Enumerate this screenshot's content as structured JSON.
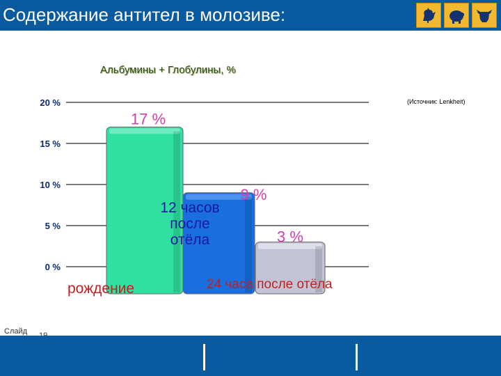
{
  "header": {
    "title": "Содержание антител в молозиве:",
    "icons": [
      "rooster-icon",
      "pig-icon",
      "cow-icon"
    ]
  },
  "subtitle": "Альбумины + Глобулины, %",
  "source": "(Источник: Lenkheit)",
  "footer": {
    "slide_label": "Слайд",
    "slide_number": "19"
  },
  "colors": {
    "header": "#0a5aa0",
    "bar1": "#2fe0a0",
    "bar2": "#1a6fe0",
    "bar3": "#c2c4d6",
    "value_label": "#d040b0",
    "category_label": "#c02020"
  },
  "chart_data": {
    "type": "bar",
    "categories": [
      "рождение",
      "12 часов после отёла",
      "24 часа после отёла"
    ],
    "values": [
      17,
      9,
      3
    ],
    "value_labels": [
      "17 %",
      "9 %",
      "3 %"
    ],
    "yticks": [
      "0 %",
      "5 %",
      "10 %",
      "15 %",
      "20 %"
    ],
    "ylim": [
      0,
      20
    ],
    "grid": true
  }
}
